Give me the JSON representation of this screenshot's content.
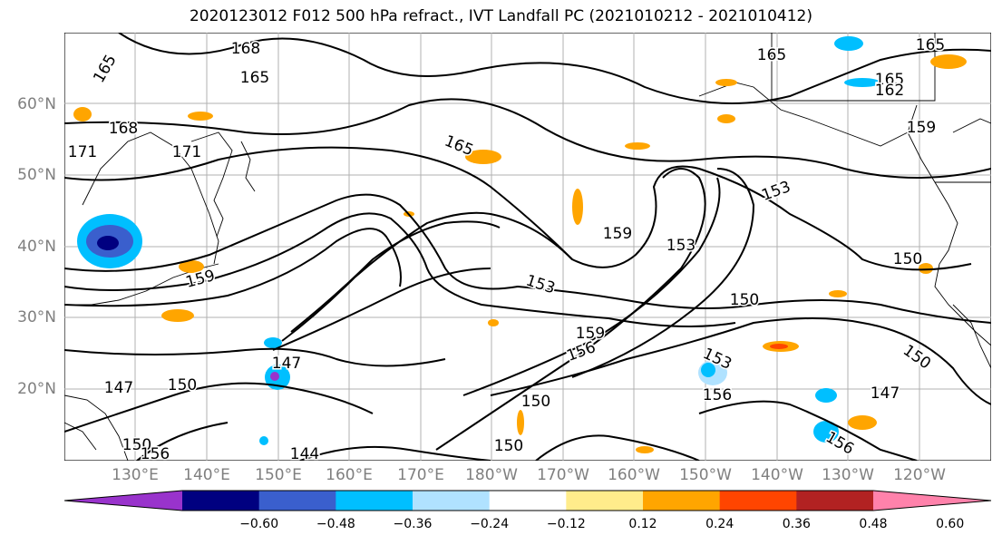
{
  "title": "2020123012 F012 500 hPa refract., IVT Landfall PC (2021010212 - 2021010412)",
  "map": {
    "lat_labels": [
      "60°N",
      "50°N",
      "40°N",
      "30°N",
      "20°N"
    ],
    "lon_labels": [
      "130°E",
      "140°E",
      "150°E",
      "160°E",
      "170°E",
      "180°W",
      "170°W",
      "160°W",
      "150°W",
      "140°W",
      "130°W",
      "120°W"
    ],
    "contour_labels": [
      "168",
      "165",
      "165",
      "165",
      "165",
      "165",
      "168",
      "171",
      "171",
      "165",
      "162",
      "159",
      "159",
      "159",
      "153",
      "153",
      "153",
      "150",
      "150",
      "159",
      "156",
      "153",
      "156",
      "150",
      "147",
      "147",
      "150",
      "150",
      "147",
      "144",
      "150",
      "156",
      "156",
      "150"
    ],
    "colors": {
      "land_line": "#000000",
      "grid": "#b0b0b0",
      "contour": "#000000"
    }
  },
  "colorbar": {
    "colors": [
      "#9933cc",
      "#000080",
      "#3a5fcd",
      "#00bfff",
      "#b0e2ff",
      "#ffffff",
      "#ffec8b",
      "#ffa500",
      "#ff4500",
      "#b22222",
      "#ff82ab"
    ],
    "tick_labels": [
      "−0.60",
      "−0.48",
      "−0.36",
      "−0.24",
      "−0.12",
      "0.12",
      "0.24",
      "0.36",
      "0.48",
      "0.60"
    ]
  }
}
